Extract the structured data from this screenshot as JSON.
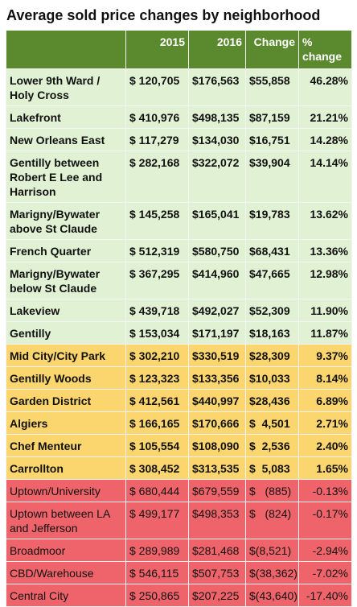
{
  "title": "Average sold price changes by neighborhood",
  "table": {
    "header": [
      "",
      "2015",
      "2016",
      "Change",
      "% change"
    ],
    "header_color": "#5b8a2e",
    "groups": [
      {
        "color": "#e1f1d3",
        "bold": true,
        "rows": [
          [
            "Lower 9th Ward / Holy Cross",
            "$ 120,705",
            "$176,563",
            "$55,858",
            "46.28%"
          ],
          [
            "Lakefront",
            "$ 410,976",
            "$498,135",
            "$87,159",
            "21.21%"
          ],
          [
            "New Orleans East",
            "$ 117,279",
            "$134,030",
            "$16,751",
            "14.28%"
          ],
          [
            "Gentilly between Robert E Lee and Harrison",
            "$ 282,168",
            "$322,072",
            "$39,904",
            "14.14%"
          ],
          [
            "Marigny/Bywater above St Claude",
            "$ 145,258",
            "$165,041",
            "$19,783",
            "13.62%"
          ],
          [
            "French Quarter",
            "$ 512,319",
            "$580,750",
            "$68,431",
            "13.36%"
          ],
          [
            "Marigny/Bywater below St Claude",
            "$ 367,295",
            "$414,960",
            "$47,665",
            "12.98%"
          ],
          [
            "Lakeview",
            "$ 439,718",
            "$492,027",
            "$52,309",
            "11.90%"
          ],
          [
            "Gentilly",
            "$ 153,034",
            "$171,197",
            "$18,163",
            "11.87%"
          ]
        ]
      },
      {
        "color": "#fbd56e",
        "bold": true,
        "rows": [
          [
            "Mid City/City Park",
            "$ 302,210",
            "$330,519",
            "$28,309",
            "9.37%"
          ],
          [
            "Gentilly Woods",
            "$ 123,323",
            "$133,356",
            "$10,033",
            "8.14%"
          ],
          [
            "Garden District",
            "$ 412,561",
            "$440,997",
            "$28,436",
            "6.89%"
          ],
          [
            "Algiers",
            "$ 166,165",
            "$170,666",
            "$  4,501",
            "2.71%"
          ],
          [
            "Chef Menteur",
            "$ 105,554",
            "$108,090",
            "$  2,536",
            "2.40%"
          ],
          [
            "Carrollton",
            "$ 308,452",
            "$313,535",
            "$  5,083",
            "1.65%"
          ]
        ]
      },
      {
        "color": "#ef646b",
        "bold": false,
        "rows": [
          [
            "Uptown/University",
            "$ 680,444",
            "$679,559",
            "$   (885)",
            "-0.13%"
          ],
          [
            "Uptown between LA and Jefferson",
            "$ 499,177",
            "$498,353",
            "$   (824)",
            "-0.17%"
          ],
          [
            "Broadmoor",
            "$ 289,989",
            "$281,468",
            "$(8,521)",
            "-2.94%"
          ],
          [
            "CBD/Warehouse",
            "$ 546,115",
            "$507,753",
            "$(38,362)",
            "-7.02%"
          ],
          [
            "Central City",
            "$ 250,865",
            "$207,225",
            "$(43,640)",
            "-17.40%"
          ]
        ]
      }
    ]
  }
}
